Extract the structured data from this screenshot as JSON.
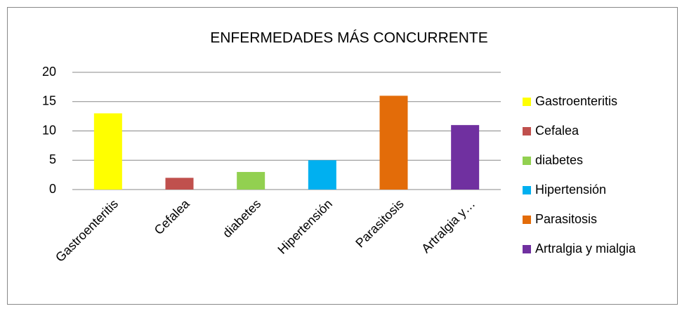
{
  "chart_data": {
    "type": "bar",
    "title": "ENFERMEDADES MÁS CONCURRENTE",
    "categories": [
      "Gastroenteritis",
      "Cefalea",
      "diabetes",
      "Hipertensión",
      "Parasitosis",
      "Artralgia y…"
    ],
    "values": [
      13,
      2,
      3,
      5,
      16,
      11
    ],
    "colors": [
      "#ffff00",
      "#c0504d",
      "#92d050",
      "#00b0f0",
      "#e36c09",
      "#7030a0"
    ],
    "legend": [
      "Gastroenteritis",
      "Cefalea",
      "diabetes",
      "Hipertensión",
      "Parasitosis",
      "Artralgia y mialgia"
    ],
    "legend_position": "right",
    "ylim": [
      0,
      20
    ],
    "yticks": [
      0,
      5,
      10,
      15,
      20
    ],
    "grid": true
  }
}
